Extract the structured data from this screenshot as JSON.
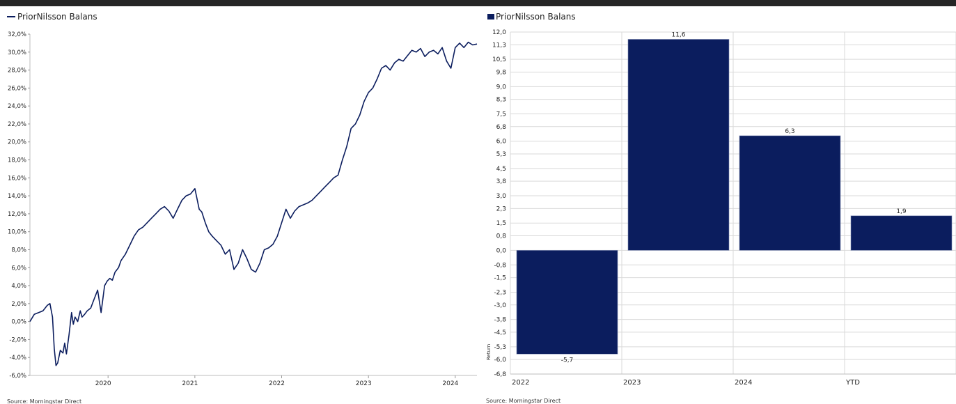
{
  "source": "Source: Morningstar Direct",
  "chart_data": [
    {
      "type": "line",
      "legend": "PriorNilsson Balans",
      "legend_position": "top-left",
      "series_color": "#0b1d5e",
      "y_ticks": [
        "32,0%",
        "30,0%",
        "28,0%",
        "26,0%",
        "24,0%",
        "22,0%",
        "20,0%",
        "18,0%",
        "16,0%",
        "14,0%",
        "12,0%",
        "10,0%",
        "8,0%",
        "6,0%",
        "4,0%",
        "2,0%",
        "0,0%",
        "-2,0%",
        "-4,0%",
        "-6,0%"
      ],
      "ylim": [
        -6,
        32
      ],
      "xlim": [
        2019.1,
        2024.25
      ],
      "x_ticks": [
        {
          "label": "2020",
          "value": 2020.0
        },
        {
          "label": "2021",
          "value": 2021.0
        },
        {
          "label": "2022",
          "value": 2022.0
        },
        {
          "label": "2023",
          "value": 2023.0
        },
        {
          "label": "2024",
          "value": 2024.0
        }
      ],
      "grid": false,
      "series": [
        {
          "name": "PriorNilsson Balans",
          "x": [
            2019.1,
            2019.15,
            2019.2,
            2019.25,
            2019.3,
            2019.33,
            2019.36,
            2019.38,
            2019.4,
            2019.42,
            2019.45,
            2019.48,
            2019.5,
            2019.52,
            2019.55,
            2019.58,
            2019.6,
            2019.62,
            2019.65,
            2019.68,
            2019.7,
            2019.73,
            2019.76,
            2019.8,
            2019.84,
            2019.88,
            2019.92,
            2019.96,
            2019.99,
            2020.02,
            2020.05,
            2020.08,
            2020.12,
            2020.15,
            2020.2,
            2020.25,
            2020.3,
            2020.35,
            2020.4,
            2020.45,
            2020.5,
            2020.55,
            2020.6,
            2020.65,
            2020.7,
            2020.75,
            2020.8,
            2020.85,
            2020.9,
            2020.95,
            2021.0,
            2021.05,
            2021.08,
            2021.12,
            2021.16,
            2021.2,
            2021.25,
            2021.3,
            2021.35,
            2021.4,
            2021.45,
            2021.5,
            2021.55,
            2021.6,
            2021.65,
            2021.7,
            2021.75,
            2021.8,
            2021.85,
            2021.9,
            2021.95,
            2022.0,
            2022.05,
            2022.1,
            2022.15,
            2022.2,
            2022.25,
            2022.3,
            2022.35,
            2022.4,
            2022.45,
            2022.5,
            2022.55,
            2022.6,
            2022.65,
            2022.7,
            2022.75,
            2022.8,
            2022.85,
            2022.9,
            2022.95,
            2023.0,
            2023.05,
            2023.1,
            2023.15,
            2023.2,
            2023.25,
            2023.3,
            2023.35,
            2023.4,
            2023.45,
            2023.5,
            2023.55,
            2023.6,
            2023.65,
            2023.7,
            2023.75,
            2023.8,
            2023.85,
            2023.9,
            2023.95,
            2024.0,
            2024.05,
            2024.1,
            2024.15,
            2024.2,
            2024.25
          ],
          "y": [
            0.0,
            0.8,
            1.0,
            1.2,
            1.8,
            2.0,
            0.5,
            -3.0,
            -4.9,
            -4.6,
            -3.2,
            -3.5,
            -2.4,
            -3.6,
            -1.5,
            1.0,
            -0.3,
            0.5,
            0.0,
            1.2,
            0.5,
            0.8,
            1.2,
            1.5,
            2.5,
            3.5,
            1.0,
            4.0,
            4.5,
            4.8,
            4.6,
            5.5,
            6.0,
            6.8,
            7.5,
            8.5,
            9.5,
            10.2,
            10.5,
            11.0,
            11.5,
            12.0,
            12.5,
            12.8,
            12.3,
            11.5,
            12.5,
            13.5,
            14.0,
            14.2,
            14.8,
            12.5,
            12.2,
            11.0,
            10.0,
            9.5,
            9.0,
            8.5,
            7.5,
            8.0,
            5.8,
            6.5,
            8.0,
            7.0,
            5.8,
            5.5,
            6.5,
            8.0,
            8.2,
            8.6,
            9.5,
            11.0,
            12.5,
            11.5,
            12.3,
            12.8,
            13.0,
            13.2,
            13.5,
            14.0,
            14.5,
            15.0,
            15.5,
            16.0,
            16.3,
            18.0,
            19.5,
            21.5,
            22.0,
            23.0,
            24.5,
            25.5,
            26.0,
            27.0,
            28.2,
            28.5,
            28.0,
            28.8,
            29.2,
            29.0,
            29.6,
            30.2,
            30.0,
            30.4,
            29.5,
            30.0,
            30.2,
            29.8,
            30.5,
            29.0,
            28.2,
            30.5,
            31.0,
            30.5,
            31.1,
            30.8,
            30.9
          ]
        }
      ]
    },
    {
      "type": "bar",
      "legend": "PriorNilsson Balans",
      "legend_position": "top-left",
      "series_color": "#0b1d5e",
      "categories": [
        "2022",
        "2023",
        "2024",
        "YTD"
      ],
      "values": [
        -5.7,
        11.6,
        6.3,
        1.9
      ],
      "data_labels": [
        "-5,7",
        "11,6",
        "6,3",
        "1,9"
      ],
      "y_ticks": [
        "12,0",
        "11,3",
        "10,5",
        "9,8",
        "9,0",
        "8,3",
        "7,5",
        "6,8",
        "6,0",
        "5,3",
        "4,5",
        "3,8",
        "3,0",
        "2,3",
        "1,5",
        "0,8",
        "0,0",
        "-0,8",
        "-1,5",
        "-2,3",
        "-3,0",
        "-3,8",
        "-4,5",
        "-5,3",
        "-6,0",
        "-6,8"
      ],
      "ylim": [
        -6.8,
        12.0
      ],
      "ylabel": "Return",
      "grid": true
    }
  ]
}
